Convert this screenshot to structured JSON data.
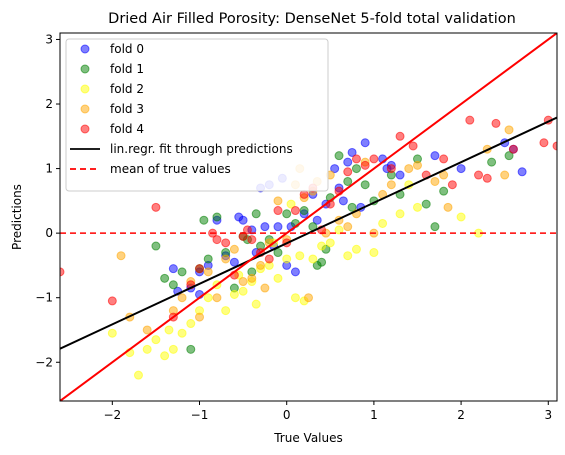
{
  "chart_data": {
    "type": "scatter",
    "title": "Dried Air Filled Porosity: DenseNet 5-fold total validation",
    "xlabel": "True Values",
    "ylabel": "Predictions",
    "xlim": [
      -2.6,
      3.1
    ],
    "ylim": [
      -2.6,
      3.1
    ],
    "xticks": [
      -2,
      -1,
      0,
      1,
      2,
      3
    ],
    "yticks": [
      -2,
      -1,
      0,
      1,
      2,
      3
    ],
    "grid": false,
    "legend_position": "top-left",
    "series": [
      {
        "name": "fold 0",
        "color": "#0000ff",
        "points": [
          [
            -1.3,
            -0.55
          ],
          [
            -1.25,
            -0.9
          ],
          [
            -1.1,
            -0.85
          ],
          [
            -1.0,
            -0.6
          ],
          [
            -0.9,
            -0.5
          ],
          [
            -0.8,
            0.2
          ],
          [
            -0.55,
            0.25
          ],
          [
            -0.5,
            0.2
          ],
          [
            -0.4,
            0.05
          ],
          [
            -0.35,
            -0.3
          ],
          [
            -0.3,
            0.7
          ],
          [
            -0.2,
            0.75
          ],
          [
            -0.15,
            -0.2
          ],
          [
            -0.1,
            0.1
          ],
          [
            -0.05,
            0.85
          ],
          [
            0.0,
            -0.5
          ],
          [
            0.05,
            0.1
          ],
          [
            0.1,
            -0.6
          ],
          [
            0.2,
            0.3
          ],
          [
            0.3,
            0.6
          ],
          [
            0.35,
            0.2
          ],
          [
            0.45,
            0.45
          ],
          [
            0.55,
            1.0
          ],
          [
            0.6,
            0.7
          ],
          [
            0.65,
            0.5
          ],
          [
            0.7,
            1.1
          ],
          [
            0.75,
            1.25
          ],
          [
            0.85,
            0.4
          ],
          [
            0.9,
            1.4
          ],
          [
            1.1,
            1.15
          ],
          [
            1.15,
            1.0
          ],
          [
            1.2,
            1.05
          ],
          [
            1.3,
            0.9
          ],
          [
            1.7,
            1.2
          ],
          [
            2.0,
            1.0
          ],
          [
            2.5,
            1.4
          ],
          [
            2.6,
            1.3
          ],
          [
            2.7,
            0.95
          ],
          [
            -1.0,
            -0.95
          ],
          [
            -0.7,
            -0.35
          ],
          [
            -0.6,
            -0.45
          ],
          [
            -0.25,
            0.1
          ]
        ]
      },
      {
        "name": "fold 1",
        "color": "#008000",
        "points": [
          [
            -1.5,
            -0.2
          ],
          [
            -1.4,
            -0.7
          ],
          [
            -1.3,
            -0.8
          ],
          [
            -1.2,
            -0.6
          ],
          [
            -1.1,
            -1.8
          ],
          [
            -1.0,
            -0.55
          ],
          [
            -0.95,
            0.2
          ],
          [
            -0.9,
            -0.4
          ],
          [
            -0.8,
            0.25
          ],
          [
            -0.7,
            -0.3
          ],
          [
            -0.6,
            -0.85
          ],
          [
            -0.5,
            -0.05
          ],
          [
            -0.45,
            -0.1
          ],
          [
            -0.4,
            -0.6
          ],
          [
            -0.3,
            -0.2
          ],
          [
            -0.2,
            -0.1
          ],
          [
            -0.1,
            -0.3
          ],
          [
            0.0,
            0.3
          ],
          [
            0.1,
            0.15
          ],
          [
            0.2,
            0.35
          ],
          [
            0.3,
            0.1
          ],
          [
            0.35,
            -0.5
          ],
          [
            0.4,
            -0.45
          ],
          [
            0.45,
            -0.25
          ],
          [
            0.5,
            0.55
          ],
          [
            0.6,
            1.2
          ],
          [
            0.7,
            0.8
          ],
          [
            0.75,
            0.4
          ],
          [
            0.8,
            1.0
          ],
          [
            0.9,
            0.75
          ],
          [
            1.0,
            0.5
          ],
          [
            1.2,
            0.9
          ],
          [
            1.3,
            0.6
          ],
          [
            1.5,
            1.15
          ],
          [
            1.6,
            0.45
          ],
          [
            1.7,
            0.1
          ],
          [
            1.8,
            0.65
          ],
          [
            2.35,
            1.1
          ],
          [
            2.55,
            1.2
          ],
          [
            -0.35,
            0.3
          ]
        ]
      },
      {
        "name": "fold 2",
        "color": "#ffff00",
        "points": [
          [
            -2.0,
            -1.55
          ],
          [
            -1.8,
            -1.85
          ],
          [
            -1.7,
            -2.2
          ],
          [
            -1.6,
            -1.8
          ],
          [
            -1.5,
            -1.65
          ],
          [
            -1.4,
            -1.9
          ],
          [
            -1.35,
            -1.5
          ],
          [
            -1.3,
            -1.8
          ],
          [
            -1.2,
            -1.55
          ],
          [
            -1.1,
            -1.4
          ],
          [
            -1.0,
            -1.2
          ],
          [
            -0.9,
            -1.0
          ],
          [
            -0.8,
            -0.8
          ],
          [
            -0.7,
            -1.2
          ],
          [
            -0.6,
            -0.95
          ],
          [
            -0.5,
            -0.9
          ],
          [
            -0.4,
            -0.75
          ],
          [
            -0.35,
            -1.1
          ],
          [
            -0.3,
            -0.55
          ],
          [
            -0.2,
            -0.5
          ],
          [
            -0.1,
            -0.7
          ],
          [
            0.0,
            -0.4
          ],
          [
            0.1,
            -1.0
          ],
          [
            0.2,
            -1.05
          ],
          [
            0.3,
            -0.4
          ],
          [
            0.4,
            -0.2
          ],
          [
            0.5,
            -0.15
          ],
          [
            0.6,
            0.05
          ],
          [
            0.7,
            -0.35
          ],
          [
            0.8,
            -0.25
          ],
          [
            1.0,
            -0.3
          ],
          [
            1.1,
            0.15
          ],
          [
            1.3,
            0.3
          ],
          [
            1.4,
            0.75
          ],
          [
            1.5,
            0.4
          ],
          [
            2.0,
            0.25
          ],
          [
            2.2,
            0.0
          ],
          [
            -0.15,
            -0.15
          ],
          [
            0.05,
            0.45
          ],
          [
            0.15,
            -0.35
          ],
          [
            -0.55,
            -0.65
          ]
        ]
      },
      {
        "name": "fold 3",
        "color": "#ffa500",
        "points": [
          [
            -1.9,
            -0.35
          ],
          [
            -1.8,
            -1.3
          ],
          [
            -1.6,
            -1.5
          ],
          [
            -1.3,
            -1.2
          ],
          [
            -1.2,
            -1.0
          ],
          [
            -1.1,
            -0.75
          ],
          [
            -1.0,
            -1.3
          ],
          [
            -0.9,
            -0.6
          ],
          [
            -0.8,
            -1.0
          ],
          [
            -0.7,
            -0.4
          ],
          [
            -0.6,
            -0.25
          ],
          [
            -0.5,
            -0.75
          ],
          [
            -0.4,
            -0.7
          ],
          [
            -0.3,
            -0.5
          ],
          [
            -0.2,
            -0.15
          ],
          [
            -0.1,
            0.5
          ],
          [
            0.0,
            -0.1
          ],
          [
            0.1,
            0.75
          ],
          [
            0.2,
            0.55
          ],
          [
            0.3,
            0.65
          ],
          [
            0.35,
            0.8
          ],
          [
            0.45,
            0.0
          ],
          [
            0.5,
            0.9
          ],
          [
            0.6,
            0.2
          ],
          [
            0.7,
            0.1
          ],
          [
            0.8,
            0.3
          ],
          [
            0.9,
            1.1
          ],
          [
            1.0,
            0.0
          ],
          [
            1.1,
            0.6
          ],
          [
            1.2,
            0.75
          ],
          [
            1.4,
            1.0
          ],
          [
            1.5,
            1.05
          ],
          [
            1.7,
            0.8
          ],
          [
            1.8,
            0.9
          ],
          [
            1.85,
            0.4
          ],
          [
            2.3,
            1.3
          ],
          [
            2.5,
            0.9
          ],
          [
            2.55,
            1.6
          ],
          [
            0.25,
            -1.0
          ],
          [
            0.15,
            1.0
          ],
          [
            -0.25,
            -0.85
          ]
        ]
      },
      {
        "name": "fold 4",
        "color": "#ff0000",
        "points": [
          [
            -2.6,
            -0.6
          ],
          [
            -2.0,
            -1.05
          ],
          [
            -1.5,
            0.4
          ],
          [
            -1.3,
            -1.3
          ],
          [
            -1.1,
            -0.8
          ],
          [
            -1.0,
            -0.55
          ],
          [
            -0.85,
            0.0
          ],
          [
            -0.8,
            -0.1
          ],
          [
            -0.7,
            -0.15
          ],
          [
            -0.6,
            -0.65
          ],
          [
            -0.5,
            -0.05
          ],
          [
            -0.4,
            -0.1
          ],
          [
            -0.3,
            -0.3
          ],
          [
            -0.2,
            -0.4
          ],
          [
            -0.1,
            0.35
          ],
          [
            0.0,
            -0.15
          ],
          [
            0.1,
            0.35
          ],
          [
            0.2,
            0.6
          ],
          [
            0.3,
            0.7
          ],
          [
            0.4,
            0.05
          ],
          [
            0.5,
            0.45
          ],
          [
            0.6,
            0.65
          ],
          [
            0.7,
            0.95
          ],
          [
            0.8,
            1.15
          ],
          [
            0.9,
            1.05
          ],
          [
            1.0,
            1.15
          ],
          [
            1.2,
            1.0
          ],
          [
            1.3,
            1.5
          ],
          [
            1.45,
            1.35
          ],
          [
            1.6,
            0.9
          ],
          [
            1.8,
            1.15
          ],
          [
            1.9,
            0.75
          ],
          [
            2.1,
            1.75
          ],
          [
            2.2,
            0.9
          ],
          [
            2.3,
            0.85
          ],
          [
            2.4,
            1.7
          ],
          [
            2.6,
            1.3
          ],
          [
            3.0,
            1.75
          ],
          [
            3.1,
            1.35
          ],
          [
            2.95,
            1.4
          ],
          [
            -0.45,
            0.05
          ]
        ]
      }
    ],
    "lines": [
      {
        "name": "lin.regr. fit through predictions",
        "color": "#000000",
        "style": "solid",
        "points": [
          [
            -2.6,
            -1.79
          ],
          [
            3.1,
            1.79
          ]
        ]
      },
      {
        "name": "mean of true values",
        "color": "#ff0000",
        "style": "dashed",
        "points": [
          [
            -2.6,
            0.0
          ],
          [
            3.1,
            0.0
          ]
        ]
      },
      {
        "name": "",
        "color": "#ff0000",
        "style": "solid",
        "points": [
          [
            -2.6,
            -2.6
          ],
          [
            3.1,
            3.1
          ]
        ]
      }
    ]
  }
}
